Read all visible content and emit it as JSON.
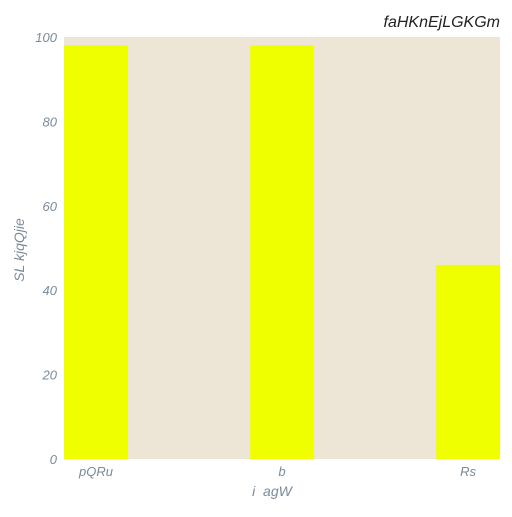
{
  "chart_data": {
    "type": "bar",
    "title": "faHKnEjLGKGm",
    "xlabel": "i  agW",
    "ylabel": "SL kjqQjie",
    "categories": [
      "pQRu",
      "b",
      "Rs"
    ],
    "series": [
      {
        "values": [
          98,
          98,
          46
        ]
      }
    ],
    "ylim": [
      0,
      100
    ],
    "yticks": [
      "0",
      "20",
      "40",
      "60",
      "80",
      "100"
    ],
    "grid": false,
    "legend": "none"
  },
  "colors": {
    "plot_background": "#ede6d6",
    "bar": "#f0ff00",
    "axis_text": "#7a8b9a",
    "title_text": "#222222"
  }
}
